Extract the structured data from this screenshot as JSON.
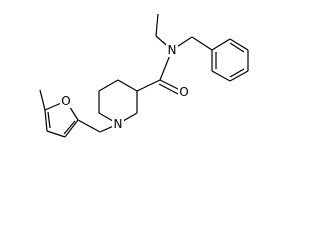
{
  "atoms": [
    {
      "label": "O"
    },
    {
      "label": "N"
    },
    {
      "label": "O"
    },
    {
      "label": "N"
    }
  ]
}
